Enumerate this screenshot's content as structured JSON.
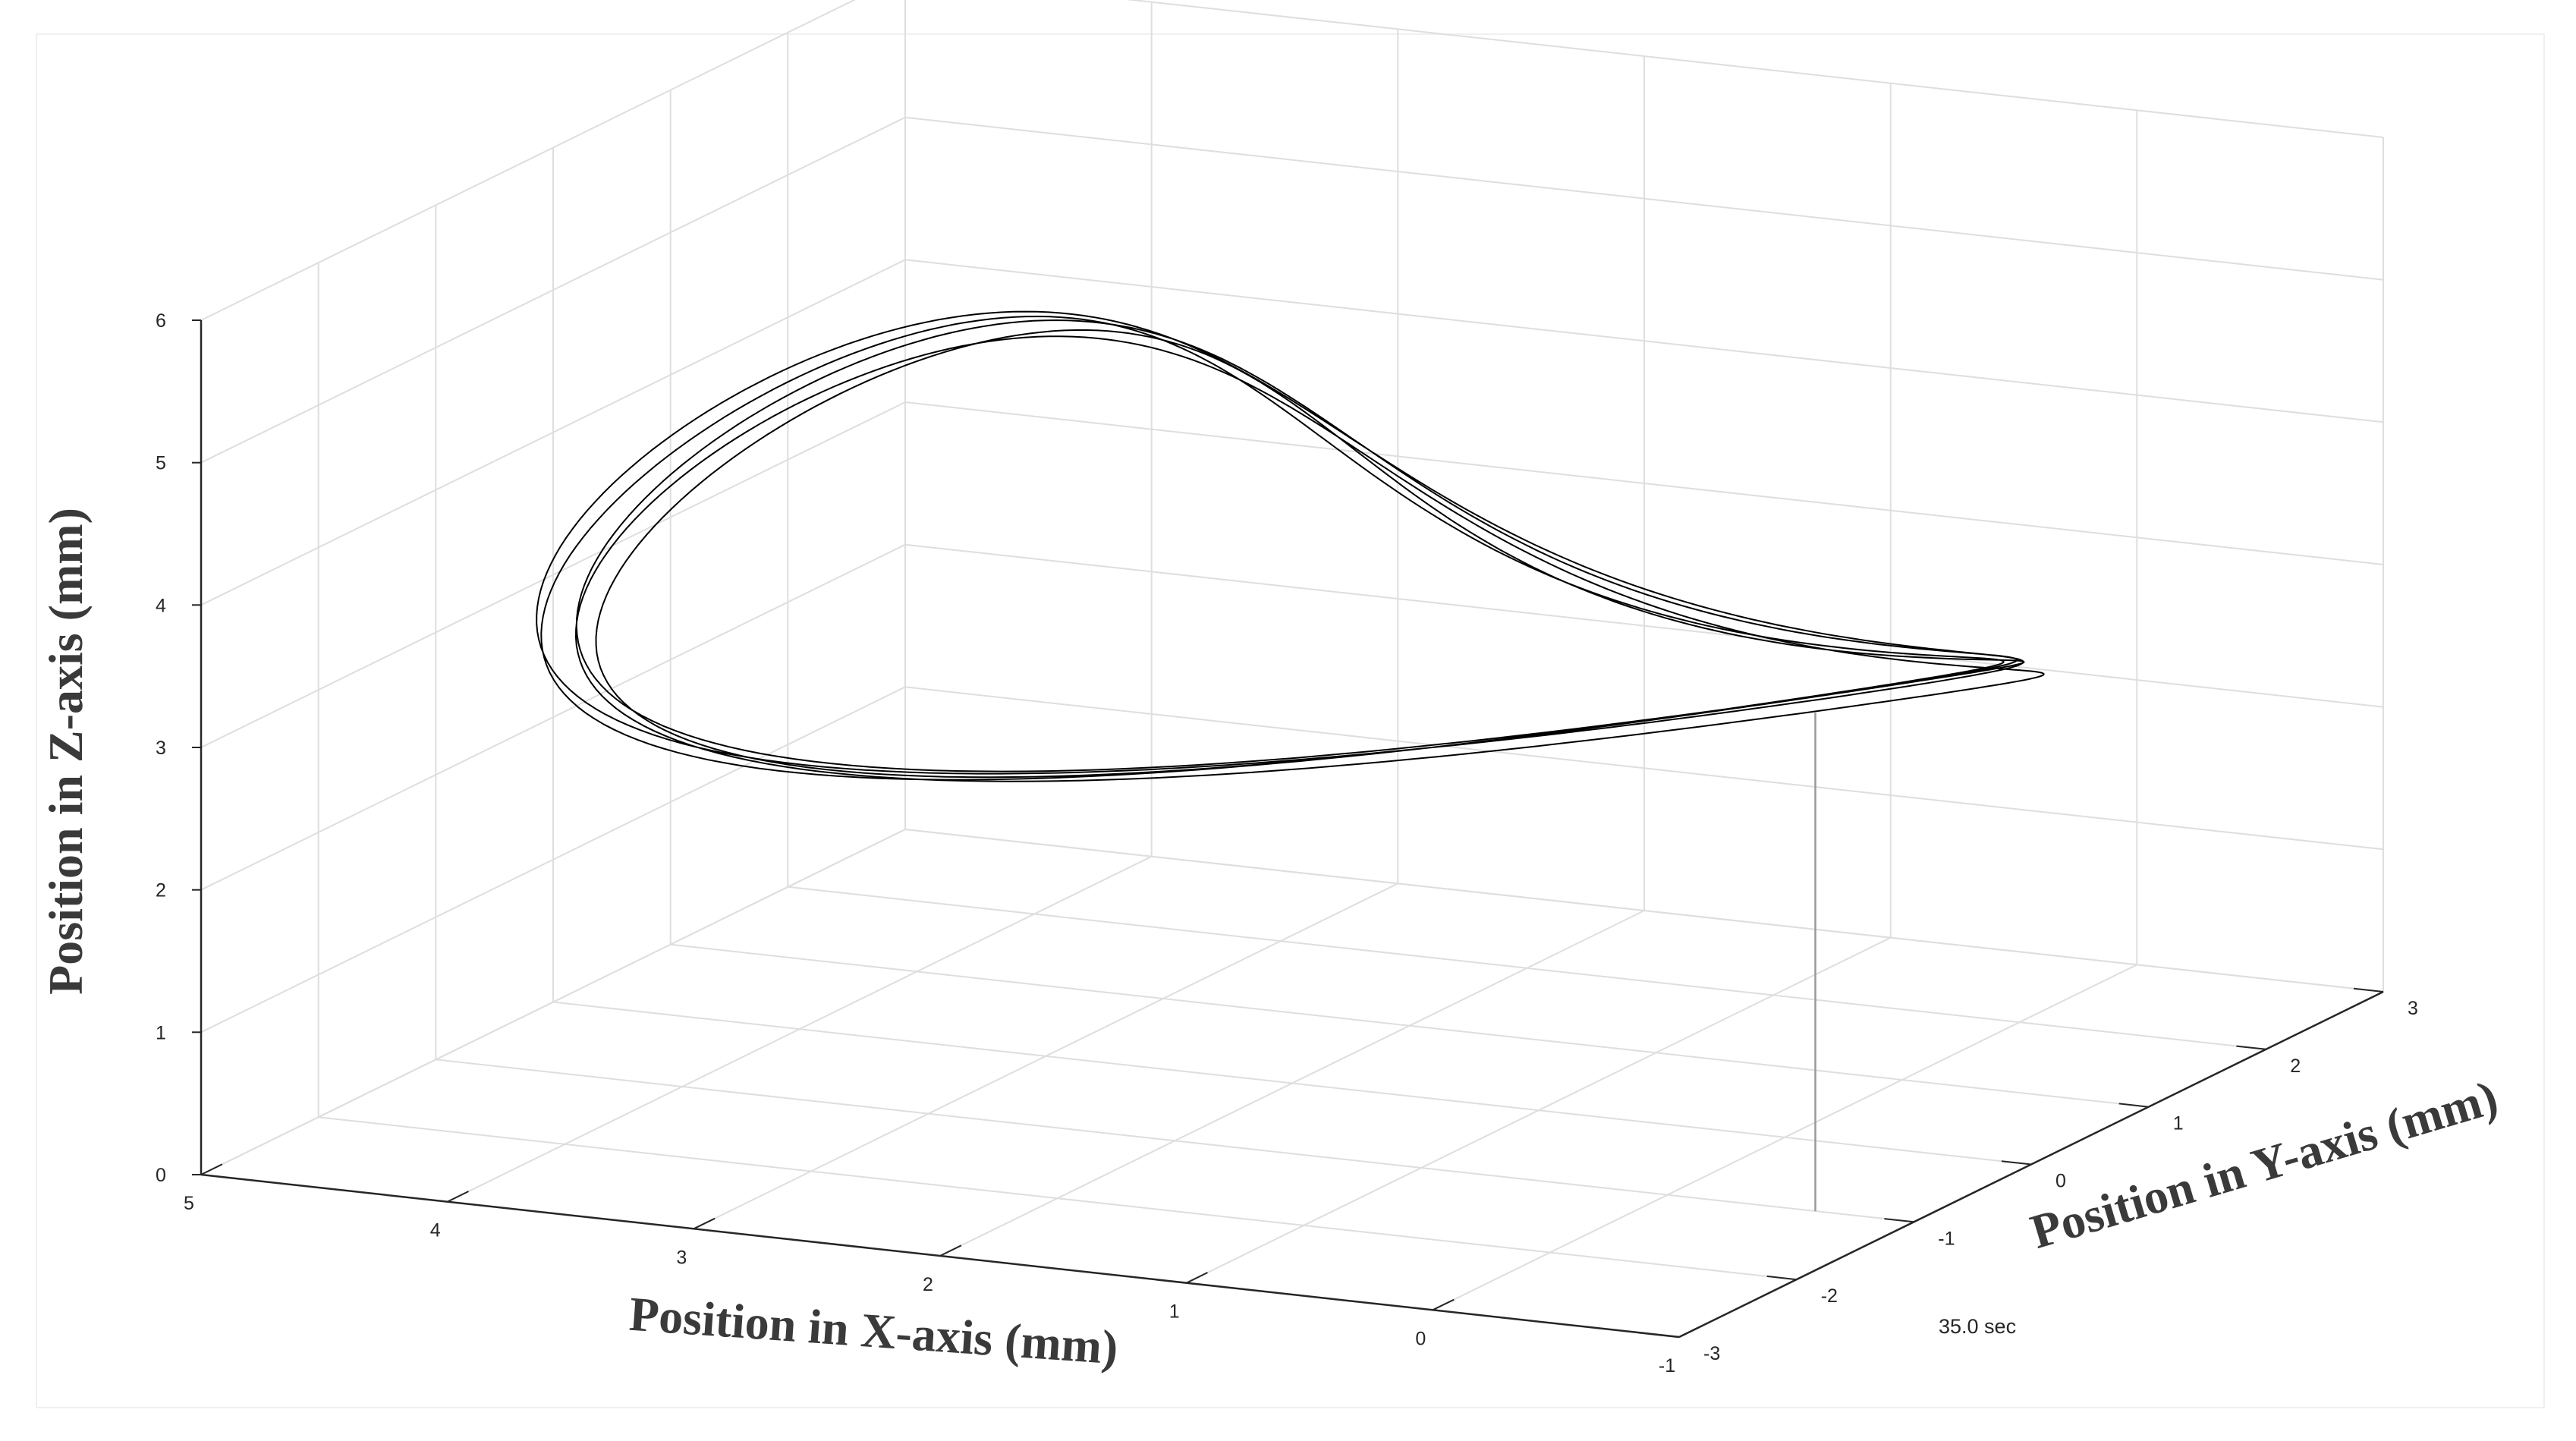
{
  "chart_data": {
    "type": "line3d",
    "title": "",
    "xlabel": "Position in X-axis (mm)",
    "ylabel": "Position in Y-axis (mm)",
    "zlabel": "Position in Z-axis (mm)",
    "xlim": [
      -1,
      5
    ],
    "ylim": [
      -3,
      3
    ],
    "zlim": [
      0,
      6
    ],
    "xticks": [
      "5",
      "4",
      "3",
      "2",
      "1",
      "0",
      "-1"
    ],
    "yticks": [
      "-3",
      "-2",
      "-1",
      "0",
      "1",
      "2",
      "3"
    ],
    "zticks": [
      "0",
      "1",
      "2",
      "3",
      "4",
      "5",
      "6"
    ],
    "grid": true,
    "annotation": "35.0 sec",
    "marker_line": {
      "x": -0.6,
      "y": -1.0,
      "z_top": 3.5
    },
    "series": [
      {
        "description": "figure-eight (lemniscate) trajectory, 5 overlapping loops",
        "x_center": 2.0,
        "x_amplitude": 2.7,
        "y_center": 0.0,
        "y_amplitude": 1.35,
        "z_center": 3.5,
        "z_amplitude": 1.25,
        "loops": 5,
        "color": "#000000"
      }
    ]
  }
}
